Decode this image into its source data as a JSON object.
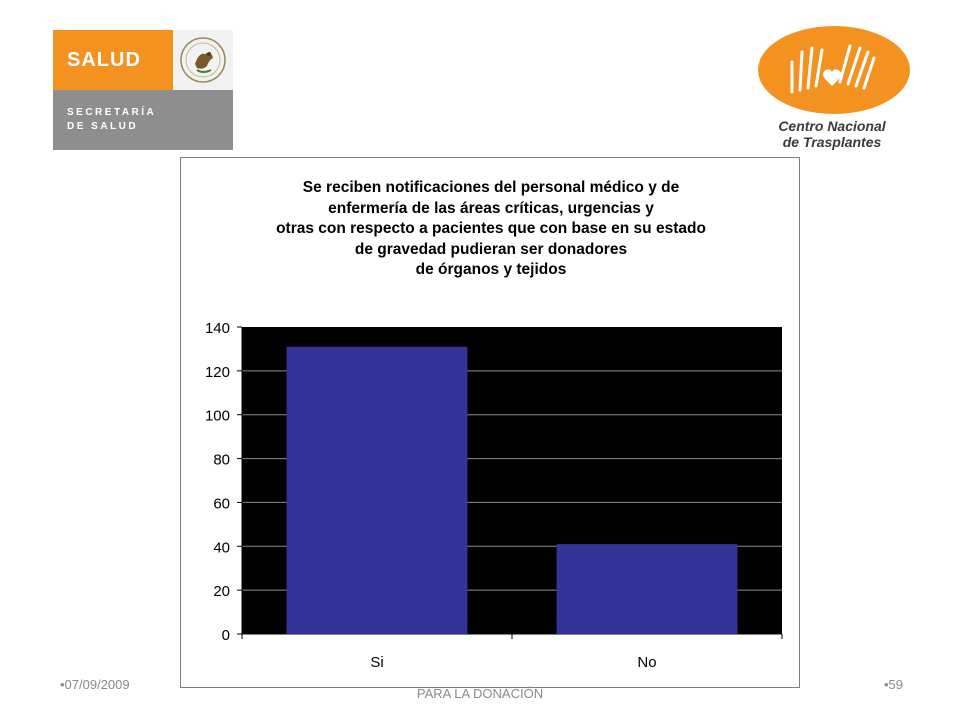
{
  "logos": {
    "salud": {
      "word": "SALUD",
      "sub_line1": "SECRETARÍA",
      "sub_line2": "DE SALUD",
      "seal_icon": "mexican-coat-of-arms-icon"
    },
    "cenatra": {
      "line1": "Centro Nacional",
      "line2": "de Trasplantes",
      "icon": "hands-heart-icon"
    }
  },
  "colors": {
    "salud_orange": "#f39221",
    "salud_grey": "#8e8e8e",
    "bar": "#333399",
    "plot_bg": "#000000"
  },
  "chart_data": {
    "type": "bar",
    "title_lines": [
      "Se reciben notificaciones del personal médico y de",
      "enfermería de las áreas críticas, urgencias y",
      "otras con respecto a pacientes que con base en su estado",
      "de gravedad pudieran ser donadores",
      "de órganos y tejidos"
    ],
    "categories": [
      "Si",
      "No"
    ],
    "values": [
      131,
      41
    ],
    "ylim": [
      0,
      140
    ],
    "yticks": [
      "0",
      "20",
      "40",
      "60",
      "80",
      "100",
      "120",
      "140"
    ],
    "xlabel": "",
    "ylabel": "",
    "grid": true,
    "legend": "none"
  },
  "footer": {
    "date": "•07/09/2009",
    "page": "•59",
    "center_text": "PARA LA DONACIÓN"
  }
}
